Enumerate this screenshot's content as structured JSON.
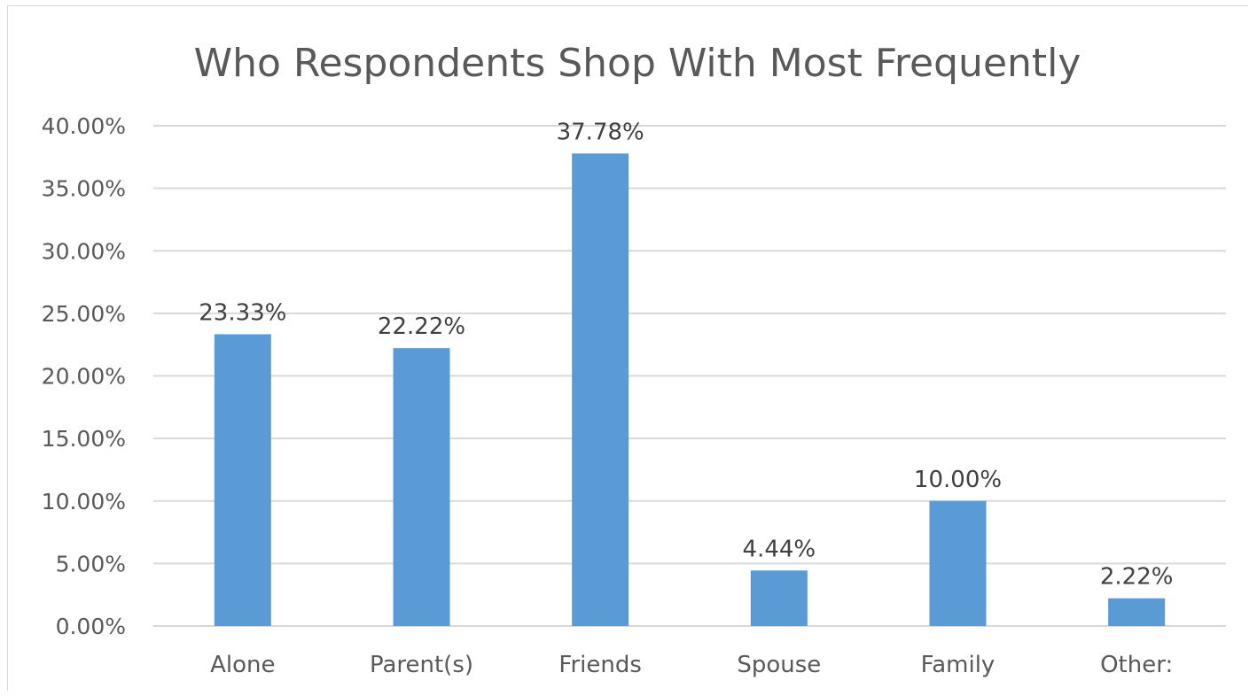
{
  "chart_data": {
    "type": "bar",
    "title": "Who Respondents Shop With Most Frequently",
    "categories": [
      "Alone",
      "Parent(s)",
      "Friends",
      "Spouse",
      "Family",
      "Other:"
    ],
    "values": [
      23.33,
      22.22,
      37.78,
      4.44,
      10.0,
      2.22
    ],
    "data_labels": [
      "23.33%",
      "22.22%",
      "37.78%",
      "4.44%",
      "10.00%",
      "2.22%"
    ],
    "y_ticks": [
      "0.00%",
      "5.00%",
      "10.00%",
      "15.00%",
      "20.00%",
      "25.00%",
      "30.00%",
      "35.00%",
      "40.00%"
    ],
    "ylim": [
      0,
      40
    ],
    "grid": true,
    "legend": "none",
    "xlabel": "",
    "ylabel": "",
    "bar_color": "#5b9bd5",
    "grid_color": "#d9d9d9"
  }
}
